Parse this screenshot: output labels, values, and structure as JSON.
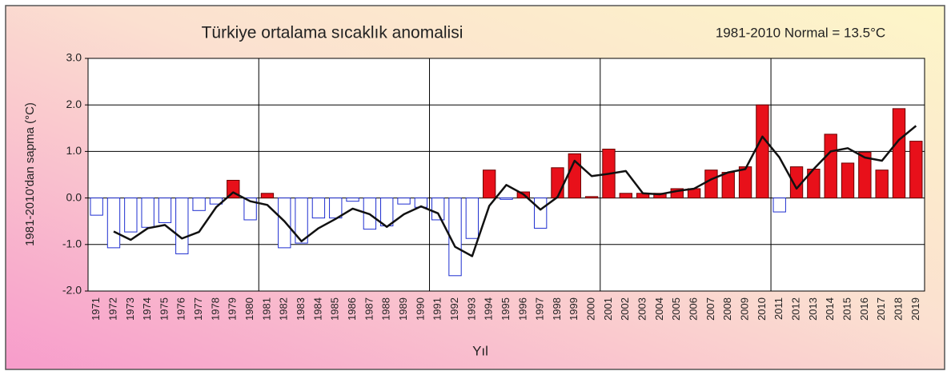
{
  "chart_data": {
    "type": "bar",
    "title": "Türkiye ortalama sıcaklık anomalisi",
    "annotation": "1981-2010 Normal = 13.5°C",
    "ylabel": "1981-2010'dan sapma (°C)",
    "xlabel": "Yıl",
    "categories": [
      "1971",
      "1972",
      "1973",
      "1974",
      "1975",
      "1976",
      "1977",
      "1978",
      "1979",
      "1980",
      "1981",
      "1982",
      "1983",
      "1984",
      "1985",
      "1986",
      "1987",
      "1988",
      "1989",
      "1990",
      "1991",
      "1992",
      "1993",
      "1994",
      "1995",
      "1996",
      "1997",
      "1998",
      "1999",
      "2000",
      "2001",
      "2002",
      "2003",
      "2004",
      "2005",
      "2006",
      "2007",
      "2008",
      "2009",
      "2010",
      "2011",
      "2012",
      "2013",
      "2014",
      "2015",
      "2016",
      "2017",
      "2018",
      "2019"
    ],
    "series": [
      {
        "type": "bar",
        "positive_color": "#e8101a",
        "negative_color": "#ffffff",
        "positive_border": "#6b0000",
        "negative_border": "#1f2fd0",
        "values": [
          -0.37,
          -1.07,
          -0.73,
          -0.63,
          -0.53,
          -1.2,
          -0.27,
          -0.13,
          0.38,
          -0.47,
          0.1,
          -1.07,
          -0.97,
          -0.43,
          -0.43,
          -0.07,
          -0.67,
          -0.6,
          -0.13,
          -0.2,
          -0.47,
          -1.67,
          -0.87,
          0.6,
          -0.03,
          0.13,
          -0.65,
          0.65,
          0.95,
          0.03,
          1.05,
          0.1,
          0.1,
          0.1,
          0.2,
          0.2,
          0.6,
          0.55,
          0.67,
          2.0,
          -0.3,
          0.67,
          0.62,
          1.37,
          0.75,
          0.98,
          0.6,
          1.92,
          1.22
        ]
      },
      {
        "type": "line",
        "color": "#111111",
        "values": [
          null,
          -0.72,
          -0.9,
          -0.65,
          -0.58,
          -0.87,
          -0.73,
          -0.2,
          0.12,
          -0.07,
          -0.15,
          -0.5,
          -0.93,
          -0.65,
          -0.45,
          -0.23,
          -0.35,
          -0.62,
          -0.35,
          -0.18,
          -0.33,
          -1.05,
          -1.25,
          -0.17,
          0.28,
          0.08,
          -0.25,
          0.02,
          0.8,
          0.47,
          0.52,
          0.58,
          0.1,
          0.08,
          0.15,
          0.2,
          0.4,
          0.55,
          0.62,
          1.32,
          0.87,
          0.2,
          0.62,
          1.0,
          1.07,
          0.87,
          0.8,
          1.25,
          1.55
        ]
      }
    ],
    "ylim": [
      -2,
      3
    ],
    "yticks": [
      {
        "value": -2,
        "label": "-2.0"
      },
      {
        "value": -1,
        "label": "-1.0"
      },
      {
        "value": 0,
        "label": "0.0"
      },
      {
        "value": 1,
        "label": "1.0"
      },
      {
        "value": 2,
        "label": "2.0"
      },
      {
        "value": 3,
        "label": "3.0"
      }
    ],
    "grid": true
  }
}
